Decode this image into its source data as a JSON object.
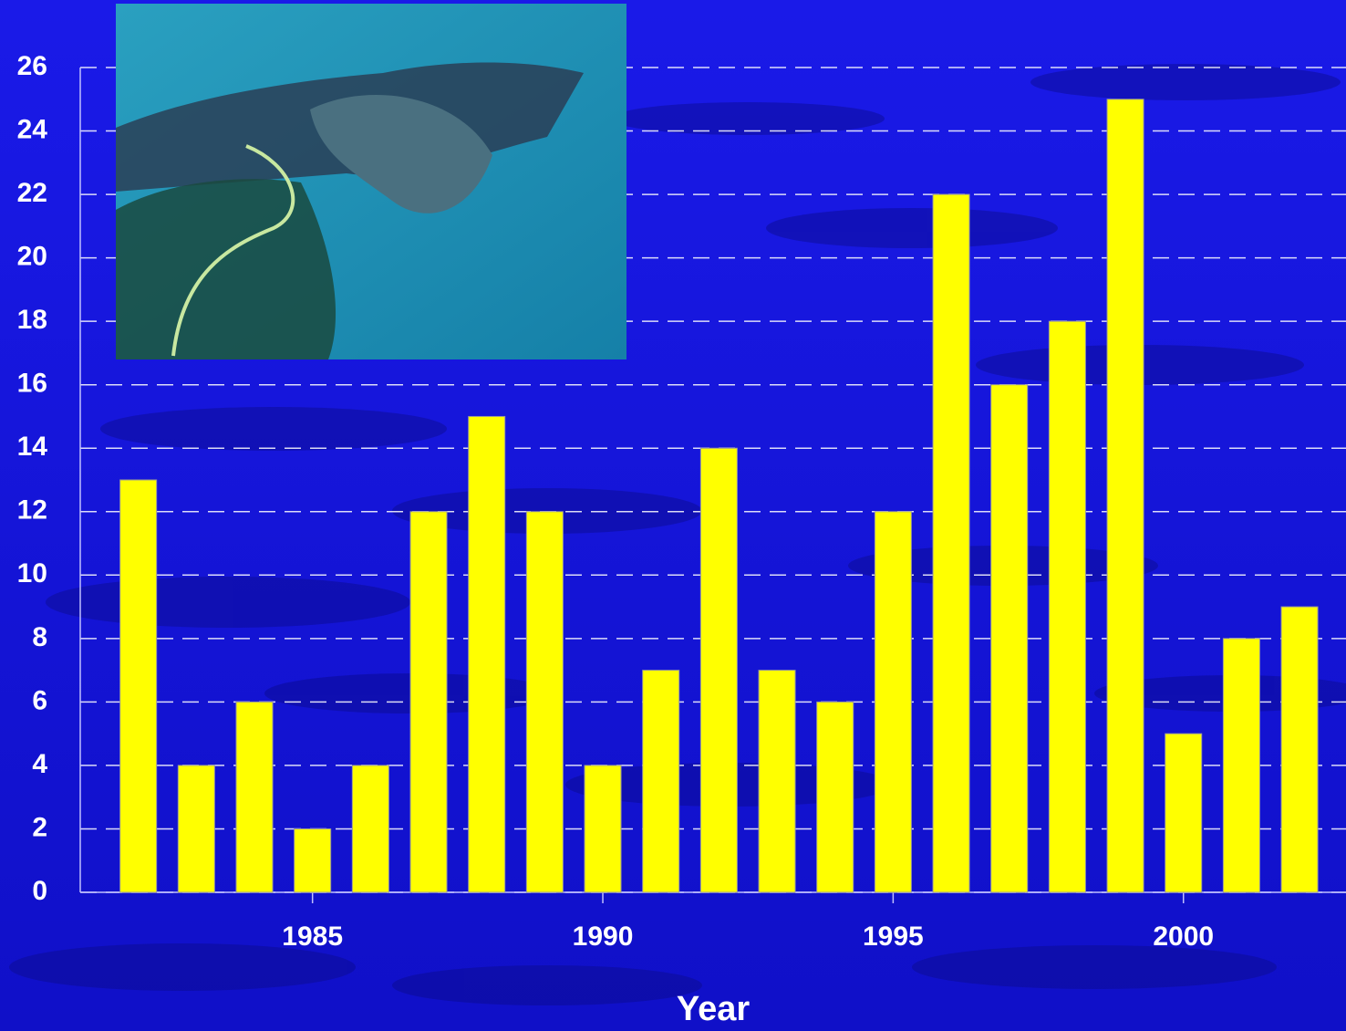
{
  "chart_data": {
    "type": "bar",
    "xlabel": "Year",
    "x": [
      1982,
      1983,
      1984,
      1985,
      1986,
      1987,
      1988,
      1989,
      1990,
      1991,
      1992,
      1993,
      1994,
      1995,
      1996,
      1997,
      1998,
      1999,
      2000,
      2001,
      2002
    ],
    "values": [
      13,
      4,
      6,
      2,
      4,
      12,
      15,
      12,
      4,
      7,
      14,
      7,
      6,
      12,
      22,
      16,
      18,
      25,
      5,
      8,
      9
    ],
    "color": "#ffff00",
    "xlim": [
      1981,
      2002.8
    ],
    "xticks": [
      1985,
      1990,
      1995,
      2000
    ],
    "ylim": [
      0,
      26
    ],
    "yticks": [
      0,
      2,
      4,
      6,
      8,
      10,
      12,
      14,
      16,
      18,
      20,
      22,
      24,
      26
    ],
    "grid": true
  }
}
